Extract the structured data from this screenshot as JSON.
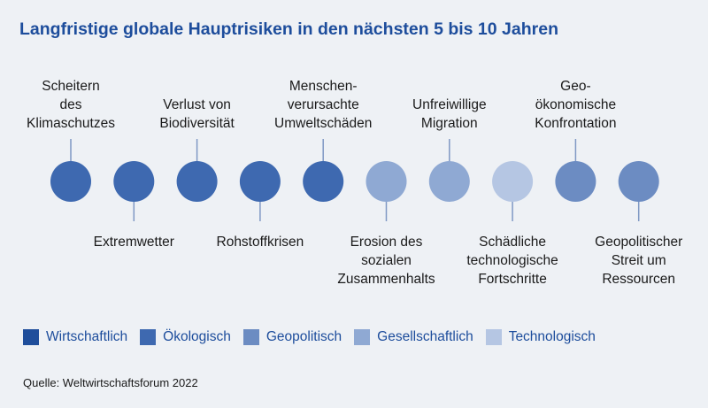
{
  "title": "Langfristige globale Hauptrisiken in den nächsten 5 bis 10 Jahren",
  "categories": [
    {
      "key": "wirtschaftlich",
      "label": "Wirtschaftlich",
      "color": "#1f4e9b"
    },
    {
      "key": "oekologisch",
      "label": "Ökologisch",
      "color": "#3e69b0"
    },
    {
      "key": "geopolitisch",
      "label": "Geopolitisch",
      "color": "#6c8cc2"
    },
    {
      "key": "gesellschaftlich",
      "label": "Gesellschaftlich",
      "color": "#8fa9d3"
    },
    {
      "key": "technologisch",
      "label": "Technologisch",
      "color": "#b5c6e3"
    }
  ],
  "risks": [
    {
      "label": [
        "Scheitern",
        "des",
        "Klimaschutzes"
      ],
      "category": "oekologisch",
      "position": "top"
    },
    {
      "label": [
        "Extremwetter"
      ],
      "category": "oekologisch",
      "position": "bottom"
    },
    {
      "label": [
        "Verlust von",
        "Biodiversität"
      ],
      "category": "oekologisch",
      "position": "top"
    },
    {
      "label": [
        "Rohstoffkrisen"
      ],
      "category": "oekologisch",
      "position": "bottom"
    },
    {
      "label": [
        "Menschen-",
        "verursachte",
        "Umweltschäden"
      ],
      "category": "oekologisch",
      "position": "top"
    },
    {
      "label": [
        "Erosion des",
        "sozialen",
        "Zusammenhalts"
      ],
      "category": "gesellschaftlich",
      "position": "bottom"
    },
    {
      "label": [
        "Unfreiwillige",
        "Migration"
      ],
      "category": "gesellschaftlich",
      "position": "top"
    },
    {
      "label": [
        "Schädliche",
        "technologische",
        "Fortschritte"
      ],
      "category": "technologisch",
      "position": "bottom"
    },
    {
      "label": [
        "Geo-",
        "ökonomische",
        "Konfrontation"
      ],
      "category": "geopolitisch",
      "position": "top"
    },
    {
      "label": [
        "Geopolitischer",
        "Streit um",
        "Ressourcen"
      ],
      "category": "geopolitisch",
      "position": "bottom"
    }
  ],
  "source": "Quelle: Weltwirtschaftsforum 2022"
}
